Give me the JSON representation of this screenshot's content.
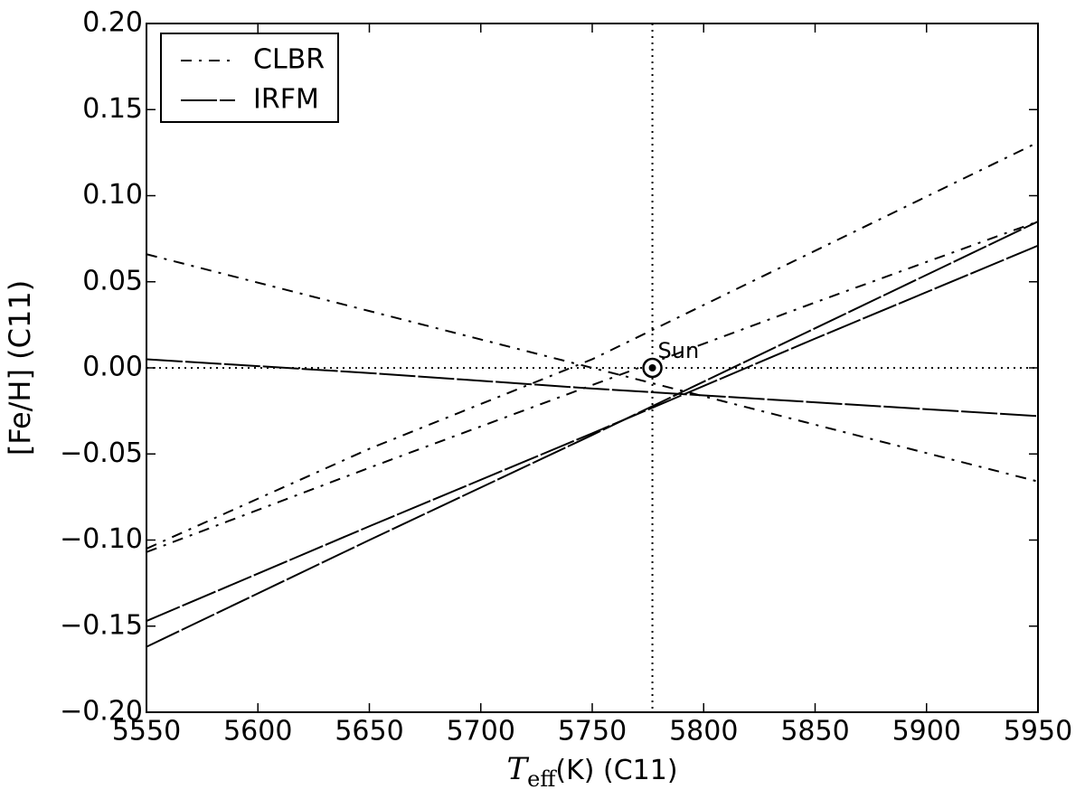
{
  "chart_data": {
    "type": "line",
    "xlabel": {
      "symbol": "T",
      "subscript": "eff",
      "text": "(K) (C11)"
    },
    "ylabel": "[Fe/H] (C11)",
    "x": [
      5550,
      5650,
      5750,
      5850,
      5950
    ],
    "series": [
      {
        "name": "CLBR",
        "color": "#000000",
        "dash": "dashdot",
        "lines": [
          {
            "values": [
              0.066,
              0.033,
              0.0,
              -0.033,
              -0.066
            ]
          },
          {
            "values": [
              -0.105,
              -0.047,
              0.005,
              0.068,
              0.131
            ]
          },
          {
            "values": [
              -0.107,
              -0.058,
              -0.01,
              0.038,
              0.085
            ]
          }
        ]
      },
      {
        "name": "IRFM",
        "color": "#000000",
        "dash": "longdash",
        "lines": [
          {
            "values": [
              0.005,
              -0.003,
              -0.012,
              -0.02,
              -0.028
            ]
          },
          {
            "values": [
              -0.147,
              -0.092,
              -0.038,
              0.017,
              0.071
            ]
          },
          {
            "values": [
              -0.162,
              -0.1,
              -0.039,
              0.023,
              0.085
            ]
          }
        ]
      }
    ],
    "vline": 5777,
    "hline": 0,
    "sun": {
      "x": 5777,
      "y": 0,
      "label": "Sun"
    },
    "xlim": [
      5550,
      5950
    ],
    "xticks": [
      5550,
      5600,
      5650,
      5700,
      5750,
      5800,
      5850,
      5900,
      5950
    ],
    "ylim": [
      -0.2,
      0.2
    ],
    "yticks": [
      {
        "value": -0.2,
        "label": "−0.20"
      },
      {
        "value": -0.15,
        "label": "−0.15"
      },
      {
        "value": -0.1,
        "label": "−0.10"
      },
      {
        "value": -0.05,
        "label": "−0.05"
      },
      {
        "value": 0,
        "label": "0.00"
      },
      {
        "value": 0.05,
        "label": "0.05"
      },
      {
        "value": 0.1,
        "label": "0.10"
      },
      {
        "value": 0.15,
        "label": "0.15"
      },
      {
        "value": 0.2,
        "label": "0.20"
      }
    ],
    "legend": "upper left"
  }
}
